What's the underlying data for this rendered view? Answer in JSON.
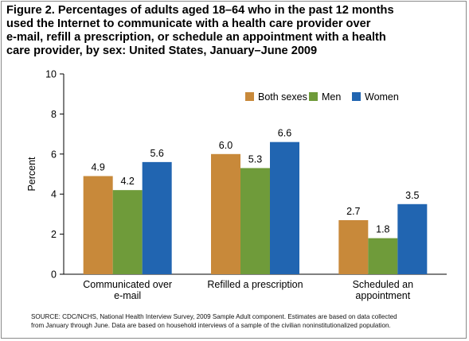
{
  "figure": {
    "title_lines": [
      "Figure 2. Percentages of adults aged 18–64 who in the past 12 months",
      "used the Internet to communicate with a health care provider over",
      "e-mail, refill a prescription, or schedule an appointment with a health",
      "care provider, by sex: United States, January–June 2009"
    ],
    "source_lines": [
      "SOURCE: CDC/NCHS, National Health Interview Survey, 2009 Sample Adult component. Estimates are based on data collected",
      "from January through June. Data are based on household interviews of a sample of the civilian noninstitutionalized population."
    ]
  },
  "chart_data": {
    "type": "bar",
    "ylabel": "Percent",
    "ylim": [
      0,
      10
    ],
    "yticks": [
      "0",
      "2",
      "4",
      "6",
      "8",
      "10"
    ],
    "grid": false,
    "legend_position": "top-right",
    "categories": [
      [
        "Communicated over",
        "e-mail"
      ],
      [
        "Refilled a prescription"
      ],
      [
        "Scheduled an",
        "appointment"
      ]
    ],
    "series": [
      {
        "name": "Both sexes",
        "color": "#c8893a",
        "values": [
          4.9,
          6.0,
          2.7
        ],
        "labels": [
          "4.9",
          "6.0",
          "2.7"
        ]
      },
      {
        "name": "Men",
        "color": "#6f9b3a",
        "values": [
          4.2,
          5.3,
          1.8
        ],
        "labels": [
          "4.2",
          "5.3",
          "1.8"
        ]
      },
      {
        "name": "Women",
        "color": "#2165b1",
        "values": [
          5.6,
          6.6,
          3.5
        ],
        "labels": [
          "5.6",
          "6.6",
          "3.5"
        ]
      }
    ]
  }
}
